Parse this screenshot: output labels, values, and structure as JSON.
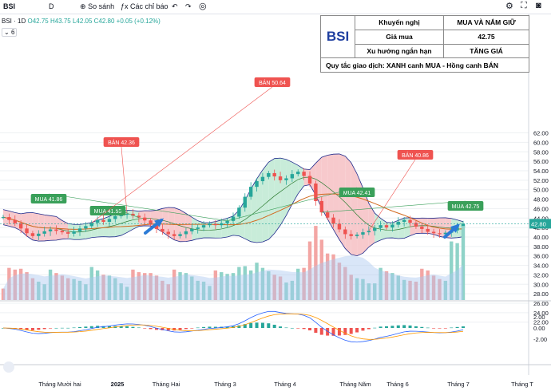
{
  "toolbar": {
    "symbol": "BSI",
    "interval": "D",
    "compare": "So sánh",
    "indicators": "Các chỉ báo",
    "undo_icon": "undo-icon",
    "redo_icon": "redo-icon"
  },
  "legend": {
    "symbol": "BSI",
    "interval": "1D",
    "ohlc": "O42.75 H43.75 L42.05 C42.80 +0.05 (+0.12%)",
    "count": "6"
  },
  "info_table": {
    "logo": "BSI",
    "row1_label": "Khuyến nghị",
    "row1_value": "MUA VÀ NẮM GIỮ",
    "row2_label": "Giá mua",
    "row2_value": "42.75",
    "row3_label": "Xu hướng ngắn hạn",
    "row3_value": "TĂNG GIÁ",
    "rule": "Quy tắc giao dịch: XANH canh MUA - Hồng canh BÁN"
  },
  "colors": {
    "up": "#26a69a",
    "down": "#ef5350",
    "band_green": "#c8ecd9",
    "band_red": "#f7c9cc",
    "band_line": "#1f2a8c",
    "ma": "#d2691e",
    "volume_ma": "#aac8f0",
    "arrow": "#2b7bd6",
    "grid": "#eef0f3"
  },
  "chart_data": {
    "type": "candlestick",
    "price_axis": {
      "ticks": [
        "22.00",
        "24.00",
        "26.00",
        "28.00",
        "30.00",
        "32.00",
        "34.00",
        "36.00",
        "38.00",
        "40.00",
        "42.00",
        "44.00",
        "46.00",
        "48.00",
        "50.00",
        "52.00",
        "54.00",
        "56.00",
        "58.00",
        "60.00",
        "62.00"
      ],
      "last_price": "42.80"
    },
    "macd_axis": {
      "ticks": [
        "2.00",
        "0.00",
        "-2.00"
      ]
    },
    "time_axis": [
      "Tháng Mười hai",
      "2025",
      "Tháng Hai",
      "Tháng 3",
      "Tháng 4",
      "Tháng Năm",
      "Tháng 6",
      "Tháng 7",
      "Tháng T"
    ],
    "closes": [
      44.2,
      43.6,
      42.9,
      41.8,
      40.8,
      40.2,
      40.7,
      41.2,
      41.6,
      41.3,
      41.0,
      40.7,
      41.2,
      41.8,
      42.3,
      43.0,
      43.6,
      43.2,
      43.8,
      44.4,
      44.7,
      44.9,
      44.5,
      44.1,
      43.5,
      42.6,
      41.7,
      41.1,
      40.6,
      40.2,
      40.6,
      41.2,
      41.7,
      42.0,
      42.5,
      42.8,
      42.5,
      42.9,
      43.4,
      44.3,
      46.2,
      48.5,
      50.6,
      51.8,
      52.7,
      53.5,
      52.8,
      52.0,
      52.4,
      53.3,
      53.8,
      52.9,
      51.3,
      47.6,
      45.2,
      44.1,
      42.8,
      41.6,
      40.6,
      40.2,
      40.5,
      41.0,
      41.3,
      41.9,
      42.5,
      42.0,
      42.6,
      43.2,
      43.6,
      43.0,
      42.2,
      41.7,
      41.1,
      40.8,
      40.6,
      40.9,
      41.4,
      42.0,
      42.8
    ],
    "annotations": [
      {
        "label": "BÁN 42.36",
        "kind": "sell"
      },
      {
        "label": "MUA 41.86",
        "kind": "buy"
      },
      {
        "label": "MUA 41.55",
        "kind": "buy"
      },
      {
        "label": "BÁN 50.64",
        "kind": "sell"
      },
      {
        "label": "MUA 42.41",
        "kind": "buy"
      },
      {
        "label": "BÁN 40.86",
        "kind": "sell"
      },
      {
        "label": "MUA 42.75",
        "kind": "buy"
      }
    ]
  }
}
